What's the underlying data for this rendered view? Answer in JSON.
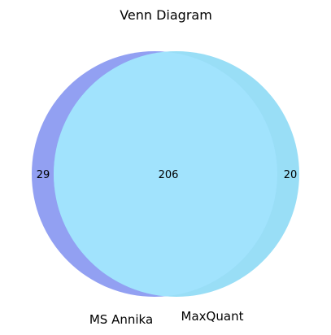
{
  "chart_data": {
    "type": "venn",
    "title": "Venn Diagram",
    "sets": [
      {
        "name": "MS Annika",
        "only": 29,
        "color": "#7f8ff0",
        "opacity": 0.85
      },
      {
        "name": "MaxQuant",
        "only": 20,
        "color": "#87d8f5",
        "opacity": 0.85
      }
    ],
    "intersection": 206,
    "intersection_color": "#a1e3fd"
  }
}
